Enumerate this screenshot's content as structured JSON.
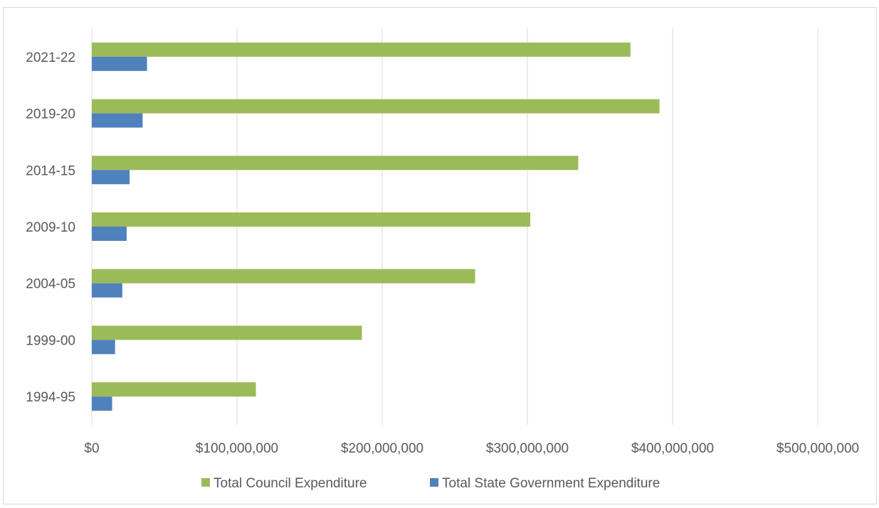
{
  "chart_data": {
    "type": "bar",
    "orientation": "horizontal",
    "categories": [
      "2021-22",
      "2019-20",
      "2014-15",
      "2009-10",
      "2004-05",
      "1999-00",
      "1994-95"
    ],
    "series": [
      {
        "name": "Total Council Expenditure",
        "color": "#9bbb59",
        "values": [
          371000000,
          391000000,
          335000000,
          302000000,
          264000000,
          186000000,
          113000000
        ]
      },
      {
        "name": "Total State Government Expenditure",
        "color": "#4f81bd",
        "values": [
          38000000,
          35000000,
          26000000,
          24000000,
          21000000,
          16000000,
          14000000
        ]
      }
    ],
    "xlim": [
      0,
      500000000
    ],
    "x_ticks": [
      "$0",
      "$100,000,000",
      "$200,000,000",
      "$300,000,000",
      "$400,000,000",
      "$500,000,000"
    ],
    "grid": "vertical",
    "legend": "bottom"
  }
}
